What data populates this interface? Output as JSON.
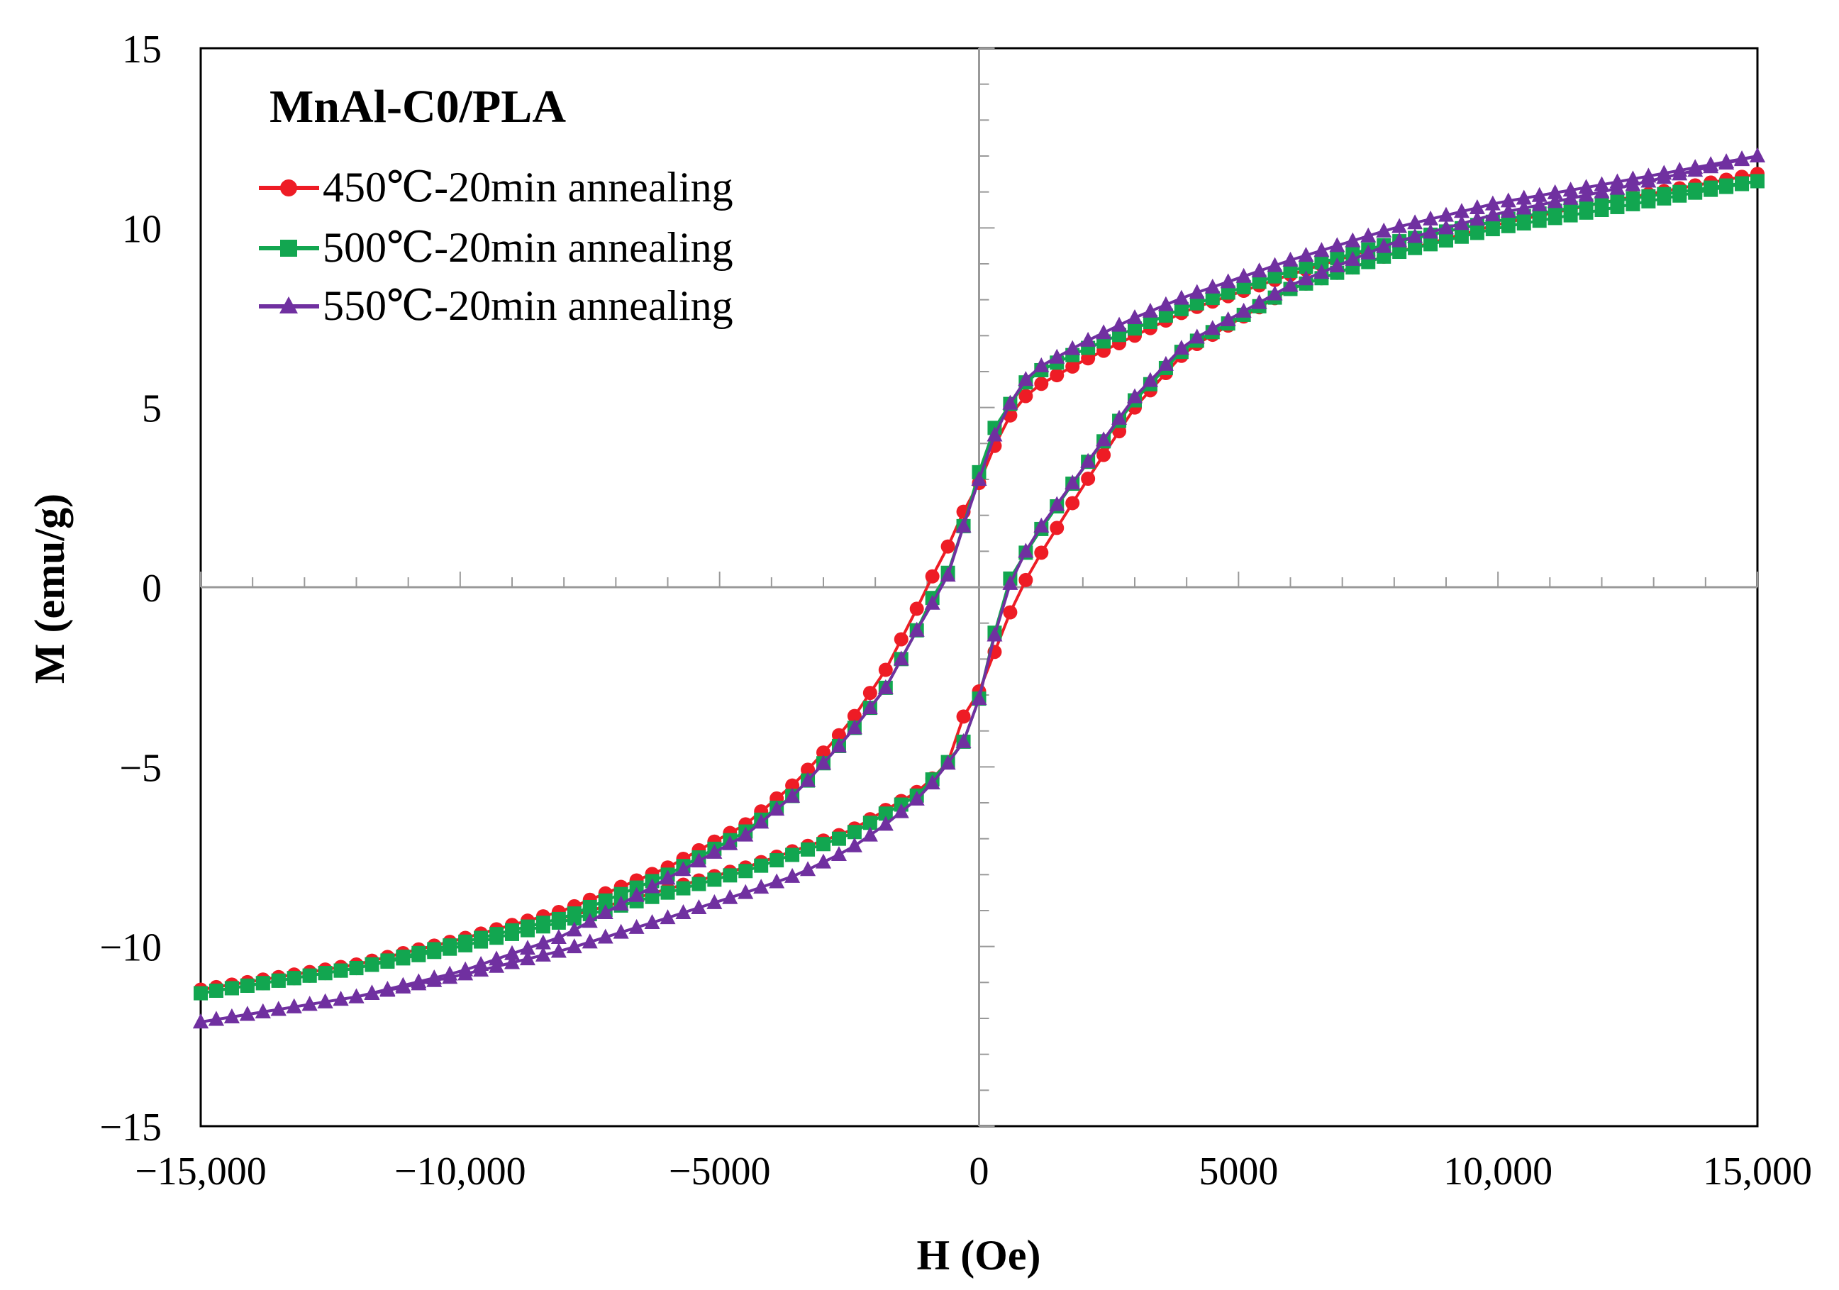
{
  "chart_data": {
    "type": "scatter",
    "title": "MnAl-C0/PLA",
    "xlabel": "H (Oe)",
    "ylabel": "M (emu/g)",
    "xlim": [
      -15000,
      15000
    ],
    "ylim": [
      -15,
      15
    ],
    "xticks": [
      -15000,
      -10000,
      -5000,
      0,
      5000,
      10000,
      15000
    ],
    "xtick_labels": [
      "−15,000",
      "−10,000",
      "−5000",
      "0",
      "5000",
      "10,000",
      "15,000"
    ],
    "yticks": [
      -15,
      -10,
      -5,
      0,
      5,
      10,
      15
    ],
    "ytick_labels": [
      "−15",
      "−10",
      "−5",
      "0",
      "5",
      "10",
      "15"
    ],
    "legend_position": "top-left",
    "series": [
      {
        "name": "450℃-20min annealing",
        "color": "#ee1c25",
        "marker": "circle",
        "x": [
          -15000,
          -12000,
          -10000,
          -8000,
          -6000,
          -4500,
          -3500,
          -2500,
          -1800,
          -1200,
          -800,
          -500,
          -300,
          0,
          200,
          500,
          1000,
          2000,
          3000,
          4000,
          6000,
          8000,
          10000,
          12000,
          15000
        ],
        "upper": [
          -11.2,
          -10.5,
          -9.8,
          -9.0,
          -7.8,
          -6.6,
          -5.4,
          -3.8,
          -2.3,
          -0.6,
          0.6,
          1.4,
          2.1,
          2.9,
          3.6,
          4.6,
          5.5,
          6.3,
          7.0,
          7.7,
          8.7,
          9.6,
          10.2,
          10.7,
          11.5
        ],
        "lower": [
          -11.3,
          -10.6,
          -9.9,
          -9.2,
          -8.4,
          -7.8,
          -7.3,
          -6.8,
          -6.2,
          -5.7,
          -5.2,
          -4.7,
          -3.6,
          -2.9,
          -2.2,
          -1.0,
          0.5,
          2.8,
          5.0,
          6.6,
          8.3,
          9.3,
          10.1,
          10.7,
          11.5
        ]
      },
      {
        "name": "500℃-20min annealing",
        "color": "#12a650",
        "marker": "square",
        "x": [
          -15000,
          -12000,
          -10000,
          -8000,
          -6000,
          -4500,
          -3500,
          -2500,
          -1800,
          -1200,
          -800,
          -500,
          -300,
          0,
          200,
          500,
          1000,
          2000,
          3000,
          4000,
          6000,
          8000,
          10000,
          12000,
          15000
        ],
        "upper": [
          -11.3,
          -10.6,
          -9.9,
          -9.2,
          -8.0,
          -6.8,
          -5.7,
          -4.1,
          -2.8,
          -1.2,
          0.0,
          0.6,
          1.7,
          3.2,
          4.2,
          4.9,
          5.9,
          6.6,
          7.2,
          7.8,
          8.8,
          9.6,
          10.2,
          10.7,
          11.3
        ],
        "lower": [
          -11.3,
          -10.6,
          -10.0,
          -9.3,
          -8.5,
          -7.9,
          -7.4,
          -6.9,
          -6.3,
          -5.8,
          -5.2,
          -4.7,
          -4.3,
          -3.1,
          -1.9,
          0.0,
          1.2,
          3.3,
          5.2,
          6.7,
          8.3,
          9.3,
          10.0,
          10.5,
          11.3
        ]
      },
      {
        "name": "550℃-20min annealing",
        "color": "#7030a0",
        "marker": "triangle",
        "x": [
          -15000,
          -12000,
          -10000,
          -8000,
          -6000,
          -4500,
          -3500,
          -2500,
          -1800,
          -1200,
          -800,
          -500,
          -300,
          0,
          200,
          500,
          1000,
          2000,
          3000,
          4000,
          6000,
          8000,
          10000,
          12000,
          15000
        ],
        "upper": [
          -12.1,
          -11.4,
          -10.7,
          -9.7,
          -8.1,
          -6.9,
          -5.7,
          -4.1,
          -2.8,
          -1.2,
          -0.2,
          0.6,
          1.7,
          3.0,
          3.9,
          4.9,
          6.0,
          6.8,
          7.5,
          8.1,
          9.1,
          10.0,
          10.7,
          11.2,
          12.0
        ],
        "lower": [
          -12.1,
          -11.4,
          -10.8,
          -10.1,
          -9.2,
          -8.5,
          -8.0,
          -7.3,
          -6.6,
          -5.9,
          -5.3,
          -4.7,
          -4.3,
          -3.1,
          -1.9,
          -0.2,
          1.3,
          3.3,
          5.3,
          6.8,
          8.4,
          9.6,
          10.4,
          11.0,
          12.0
        ]
      }
    ]
  }
}
